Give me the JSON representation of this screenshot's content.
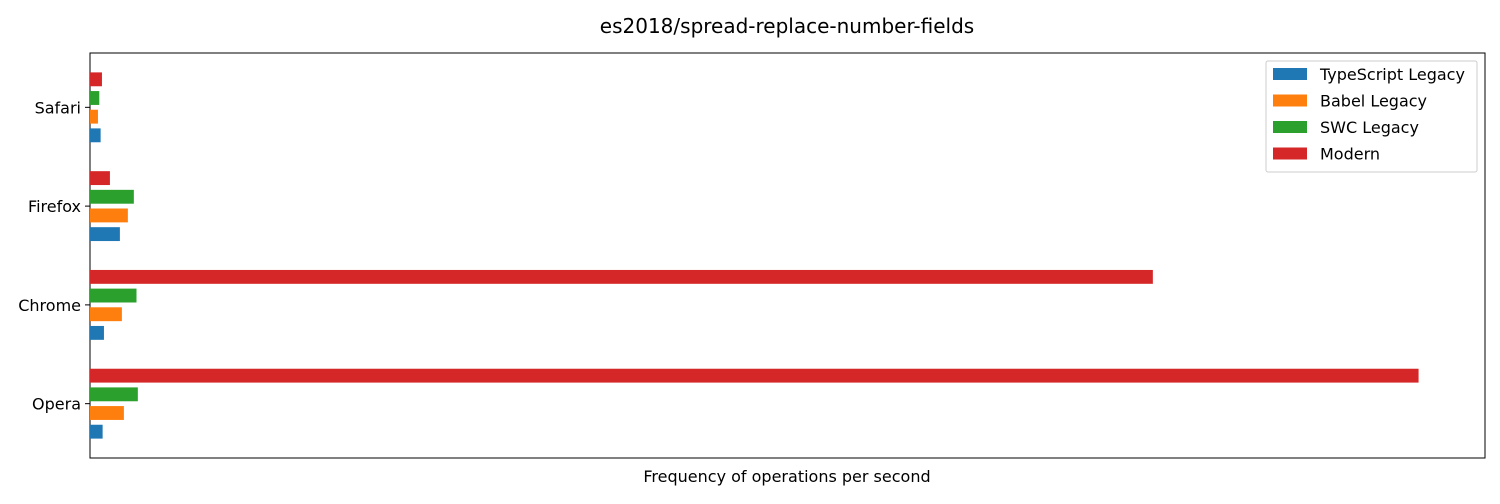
{
  "chart_data": {
    "type": "bar",
    "orientation": "horizontal",
    "title": "es2018/spread-replace-number-fields",
    "xlabel": "Frequency of operations per second",
    "ylabel": "",
    "categories": [
      "Opera",
      "Chrome",
      "Firefox",
      "Safari"
    ],
    "series": [
      {
        "name": "TypeScript Legacy",
        "color": "#1f77b4",
        "values": [
          0.95,
          1.05,
          2.25,
          0.8
        ]
      },
      {
        "name": "Babel Legacy",
        "color": "#ff7f0e",
        "values": [
          2.55,
          2.4,
          2.85,
          0.6
        ]
      },
      {
        "name": "SWC Legacy",
        "color": "#2ca02c",
        "values": [
          3.6,
          3.5,
          3.3,
          0.7
        ]
      },
      {
        "name": "Modern",
        "color": "#d62728",
        "values": [
          100,
          80,
          1.5,
          0.9
        ]
      }
    ],
    "xlim": [
      0,
      105
    ],
    "x_ticks_shown": false,
    "grid": false,
    "legend_position": "top-right"
  }
}
